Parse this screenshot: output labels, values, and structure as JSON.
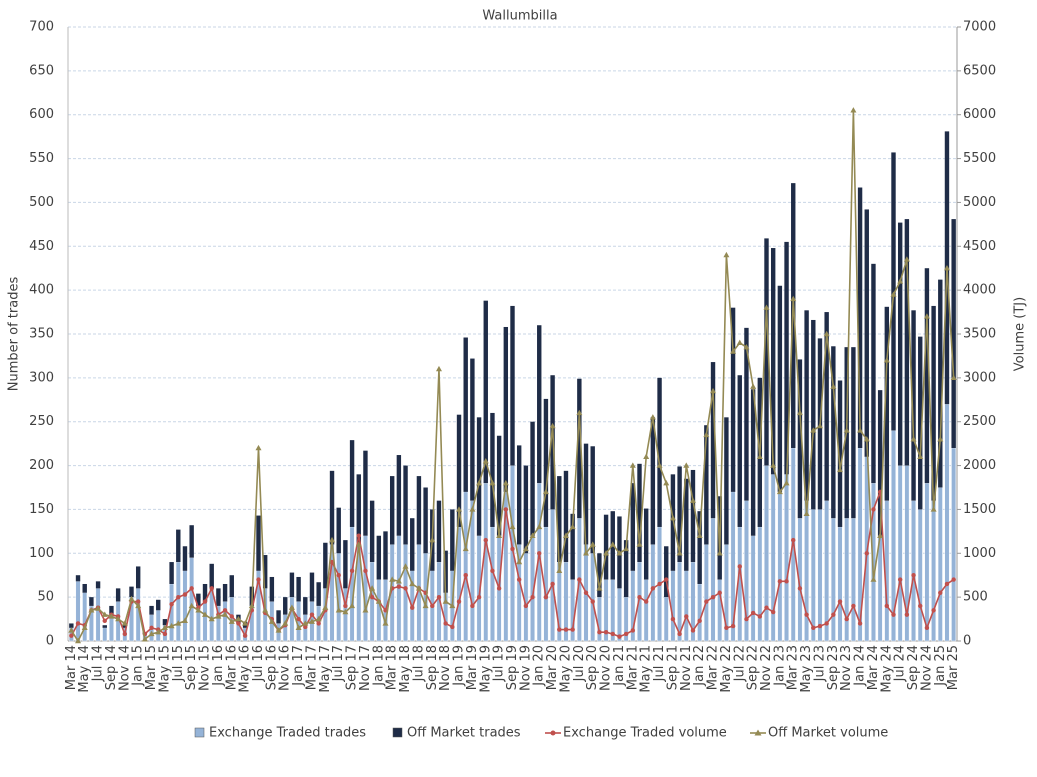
{
  "chart_data": {
    "type": "bar-line",
    "title": "Wallumbilla",
    "y_label": "Number of trades",
    "y2_label": "Volume (TJ)",
    "categories": [
      "Mar 14",
      null,
      "May 14",
      null,
      "Jul 14",
      null,
      "Sep 14",
      null,
      "Nov 14",
      null,
      "Jan 15",
      null,
      "Mar 15",
      null,
      "May 15",
      null,
      "Jul 15",
      null,
      "Sep 15",
      null,
      "Nov 15",
      null,
      "Jan 16",
      null,
      "Mar 16",
      null,
      "May 16",
      null,
      "Jul 16",
      null,
      "Sep 16",
      null,
      "Nov 16",
      null,
      "Jan 17",
      null,
      "Mar 17",
      null,
      "May 17",
      null,
      "Jul 17",
      null,
      "Sep 17",
      null,
      "Nov 17",
      null,
      "Jan 18",
      null,
      "Mar 18",
      null,
      "May 18",
      null,
      "Jul 18",
      null,
      "Sep 18",
      null,
      "Nov 18",
      null,
      "Jan 19",
      null,
      "Mar 19",
      null,
      "May 19",
      null,
      "Jul 19",
      null,
      "Sep 19",
      null,
      "Nov 19",
      null,
      "Jan 20",
      null,
      "Mar 20",
      null,
      "May 20",
      null,
      "Jul 20",
      null,
      "Sep 20",
      null,
      "Nov 20",
      null,
      "Jan 21",
      null,
      "Mar 21",
      null,
      "May 21",
      null,
      "Jul 21",
      null,
      "Sep 21",
      null,
      "Nov 21",
      null,
      "Jan 22",
      null,
      "Mar 22",
      null,
      "May 22",
      null,
      "Jul 22",
      null,
      "Sep 22",
      null,
      "Nov 22",
      null,
      "Jan 23",
      null,
      "Mar 23",
      null,
      "May 23",
      null,
      "Jul 23",
      null,
      "Sep 23",
      null,
      "Nov 23",
      null,
      "Jan 24",
      null,
      "Mar 24",
      null,
      "May 24",
      null,
      "Jul 24",
      null,
      "Sep 24",
      null,
      "Nov 24",
      null,
      "Jan 25",
      null,
      "Mar 25"
    ],
    "stacked": true,
    "series": [
      {
        "name": "Exchange Traded trades",
        "type": "bar",
        "color": "#95b3d7",
        "values": [
          15,
          68,
          55,
          40,
          60,
          15,
          30,
          45,
          15,
          50,
          60,
          8,
          30,
          35,
          18,
          65,
          90,
          80,
          95,
          40,
          45,
          60,
          40,
          45,
          50,
          20,
          15,
          40,
          80,
          60,
          45,
          20,
          30,
          50,
          45,
          30,
          45,
          40,
          60,
          110,
          100,
          60,
          130,
          110,
          120,
          90,
          70,
          70,
          110,
          120,
          110,
          80,
          110,
          100,
          80,
          90,
          55,
          80,
          130,
          170,
          160,
          120,
          180,
          130,
          120,
          170,
          200,
          110,
          100,
          120,
          180,
          130,
          150,
          90,
          90,
          70,
          140,
          110,
          100,
          50,
          70,
          70,
          60,
          50,
          80,
          90,
          70,
          110,
          130,
          50,
          80,
          90,
          80,
          90,
          65,
          110,
          140,
          70,
          110,
          170,
          130,
          160,
          120,
          130,
          200,
          190,
          170,
          190,
          220,
          140,
          160,
          150,
          150,
          160,
          140,
          130,
          140,
          140,
          220,
          210,
          180,
          120,
          160,
          240,
          200,
          200,
          160,
          150,
          180,
          160,
          175,
          270,
          220
        ]
      },
      {
        "name": "Off Market trades",
        "type": "bar",
        "color": "#1f2c47",
        "values": [
          5,
          7,
          10,
          10,
          8,
          3,
          10,
          15,
          5,
          12,
          25,
          2,
          10,
          12,
          7,
          25,
          37,
          28,
          37,
          14,
          20,
          28,
          20,
          20,
          25,
          10,
          7,
          22,
          63,
          38,
          28,
          15,
          20,
          28,
          28,
          20,
          33,
          27,
          52,
          84,
          52,
          55,
          99,
          80,
          97,
          70,
          50,
          55,
          78,
          92,
          90,
          60,
          78,
          75,
          70,
          70,
          48,
          70,
          128,
          176,
          162,
          135,
          208,
          130,
          114,
          188,
          182,
          113,
          100,
          130,
          180,
          146,
          153,
          98,
          104,
          75,
          159,
          115,
          122,
          50,
          74,
          78,
          82,
          65,
          100,
          112,
          81,
          145,
          170,
          58,
          110,
          109,
          105,
          105,
          83,
          136,
          178,
          95,
          145,
          210,
          173,
          197,
          167,
          170,
          259,
          258,
          235,
          265,
          302,
          181,
          217,
          216,
          195,
          215,
          196,
          167,
          195,
          195,
          297,
          282,
          250,
          166,
          221,
          317,
          277,
          281,
          217,
          197,
          245,
          222,
          237,
          311,
          261
        ]
      },
      {
        "name": "Exchange Traded volume",
        "type": "line",
        "marker": "circle",
        "axis": "y2",
        "color": "#c0504d",
        "values": [
          60,
          200,
          180,
          350,
          380,
          230,
          300,
          280,
          80,
          450,
          450,
          80,
          150,
          130,
          80,
          420,
          500,
          530,
          600,
          380,
          450,
          600,
          300,
          350,
          280,
          200,
          60,
          350,
          700,
          320,
          250,
          120,
          180,
          370,
          250,
          160,
          300,
          200,
          350,
          900,
          750,
          400,
          800,
          1200,
          800,
          500,
          450,
          350,
          600,
          620,
          600,
          380,
          600,
          550,
          400,
          500,
          200,
          160,
          450,
          750,
          400,
          500,
          1150,
          800,
          600,
          1500,
          1050,
          700,
          400,
          500,
          1000,
          500,
          650,
          130,
          130,
          130,
          700,
          550,
          450,
          100,
          100,
          80,
          50,
          80,
          120,
          500,
          450,
          600,
          650,
          700,
          250,
          80,
          280,
          120,
          230,
          450,
          500,
          550,
          150,
          170,
          850,
          250,
          320,
          280,
          380,
          330,
          680,
          680,
          1150,
          600,
          300,
          150,
          170,
          200,
          300,
          450,
          250,
          400,
          200,
          1000,
          1500,
          1700,
          400,
          300,
          700,
          300,
          750,
          400,
          150,
          350,
          550,
          650,
          700
        ]
      },
      {
        "name": "Off Market volume",
        "type": "line",
        "marker": "triangle",
        "axis": "y2",
        "color": "#948a54",
        "values": [
          120,
          0,
          150,
          350,
          370,
          300,
          280,
          250,
          200,
          480,
          400,
          20,
          80,
          100,
          150,
          170,
          200,
          230,
          400,
          350,
          300,
          250,
          280,
          300,
          220,
          250,
          200,
          400,
          2200,
          350,
          220,
          120,
          200,
          380,
          150,
          200,
          220,
          250,
          380,
          1150,
          350,
          330,
          400,
          1100,
          350,
          600,
          450,
          200,
          700,
          680,
          850,
          650,
          600,
          400,
          1150,
          3100,
          450,
          400,
          1500,
          1050,
          1500,
          1800,
          2050,
          1800,
          1200,
          1800,
          1300,
          900,
          1050,
          1200,
          1300,
          1700,
          2450,
          800,
          1200,
          1300,
          2600,
          1000,
          1100,
          600,
          1000,
          1100,
          1000,
          1050,
          2000,
          1100,
          2100,
          2550,
          2000,
          1800,
          1400,
          1000,
          2000,
          1600,
          1200,
          2350,
          2850,
          1000,
          4400,
          3300,
          3400,
          3350,
          2900,
          2100,
          3800,
          2000,
          1700,
          1800,
          3900,
          2600,
          1450,
          2400,
          2450,
          3500,
          2900,
          1950,
          2400,
          6050,
          2400,
          2300,
          700,
          1200,
          3200,
          3950,
          4100,
          4350,
          2300,
          2100,
          3700,
          1500,
          2300,
          4250,
          3000
        ]
      }
    ],
    "ylim": [
      0,
      700
    ],
    "yticks": [
      0,
      50,
      100,
      150,
      200,
      250,
      300,
      350,
      400,
      450,
      500,
      550,
      600,
      650,
      700
    ],
    "y2lim": [
      0,
      7000
    ],
    "y2ticks": [
      0,
      500,
      1000,
      1500,
      2000,
      2500,
      3000,
      3500,
      4000,
      4500,
      5000,
      5500,
      6000,
      6500,
      7000
    ],
    "grid": true,
    "legend": "bottom"
  }
}
